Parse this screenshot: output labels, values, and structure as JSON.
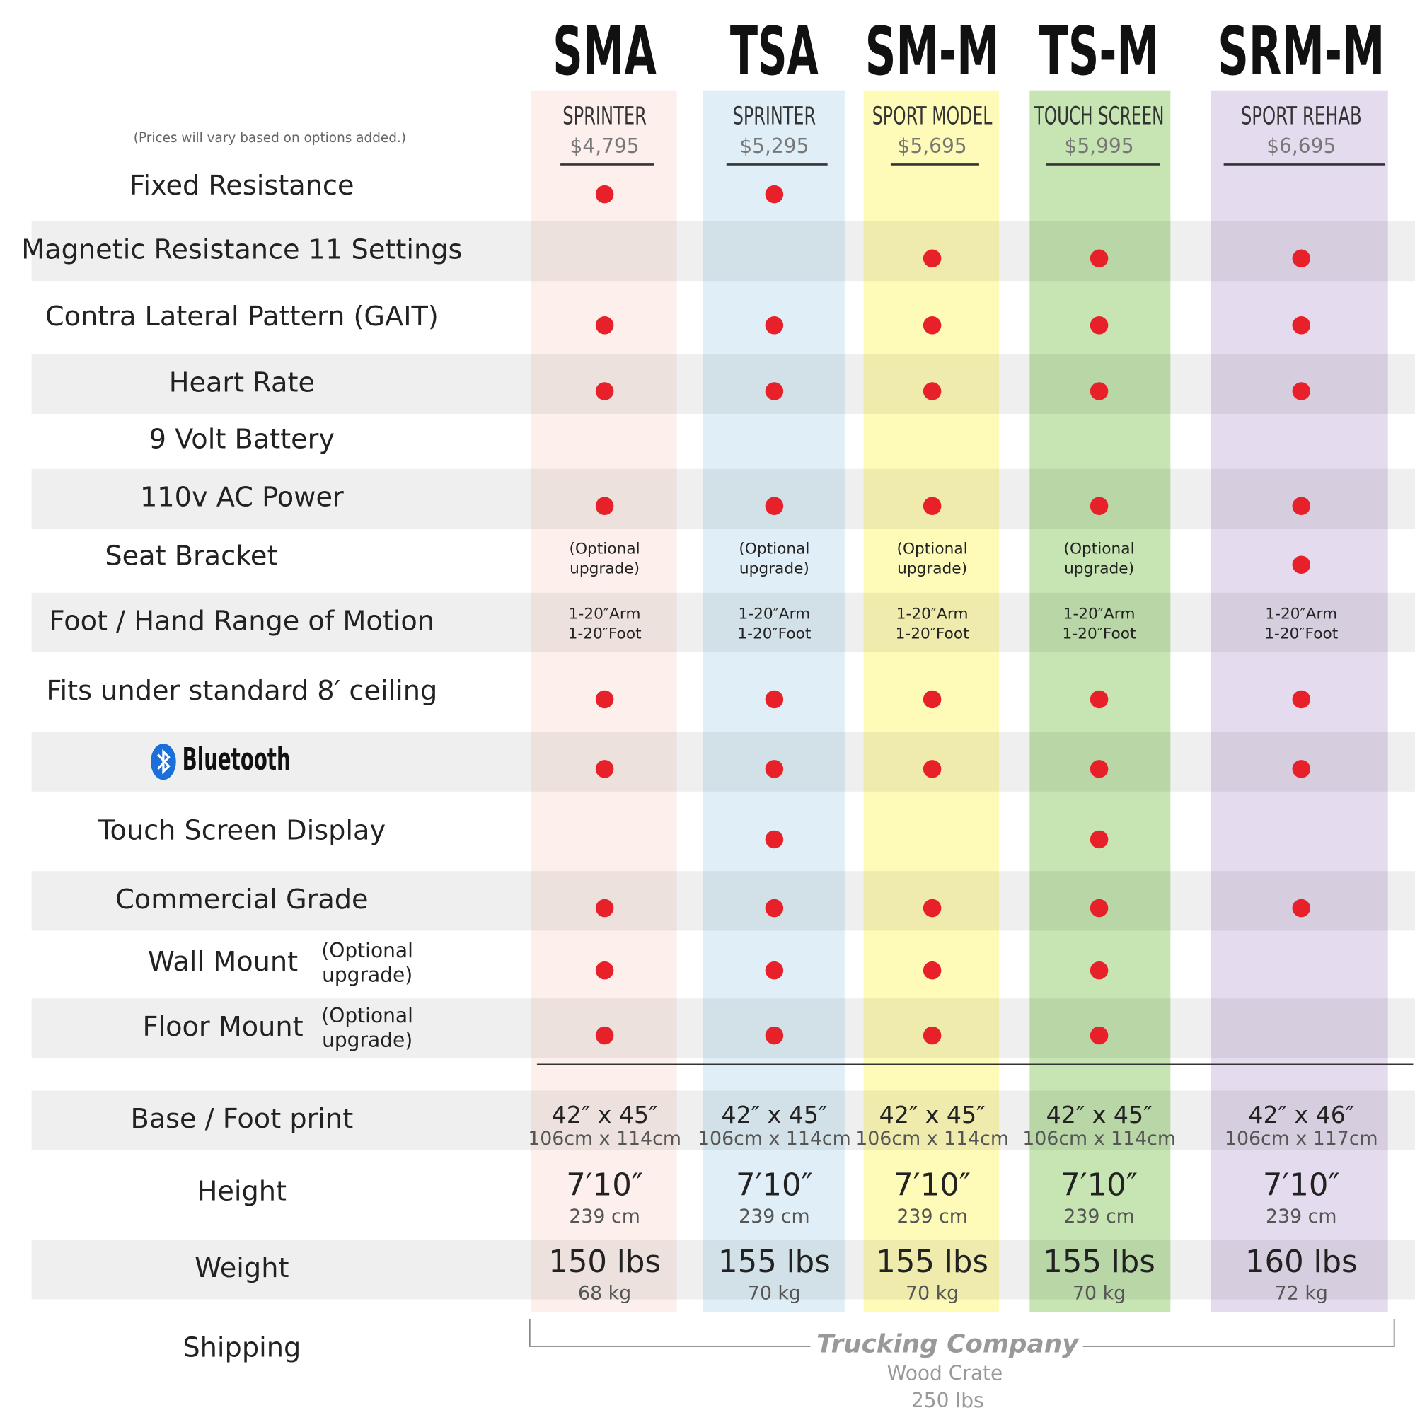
{
  "note": "(Prices will vary based on options added.)",
  "models": [
    {
      "code": "SMA",
      "name": "SPRINTER",
      "price": "$4,795",
      "color": "#fdf0ec"
    },
    {
      "code": "TSA",
      "name": "SPRINTER",
      "price": "$5,295",
      "color": "#e0eff7"
    },
    {
      "code": "SM-M",
      "name": "SPORT MODEL",
      "price": "$5,695",
      "color": "#fefbb8"
    },
    {
      "code": "TS-M",
      "name": "TOUCH SCREEN",
      "price": "$5,995",
      "color": "#c6e5b2"
    },
    {
      "code": "SRM-M",
      "name": "SPORT REHAB",
      "price": "$6,695",
      "color": "#e5dbee"
    }
  ],
  "features": [
    {
      "label": "Fixed Resistance",
      "cells": [
        true,
        true,
        null,
        null,
        null
      ]
    },
    {
      "label": "Magnetic Resistance  11 Settings",
      "cells": [
        null,
        null,
        true,
        true,
        true
      ]
    },
    {
      "label": "Contra Lateral Pattern (GAIT)",
      "cells": [
        true,
        true,
        true,
        true,
        true
      ]
    },
    {
      "label": "Heart Rate",
      "cells": [
        true,
        true,
        true,
        true,
        true
      ]
    },
    {
      "label": "9  Volt  Battery",
      "cells": [
        null,
        null,
        null,
        null,
        null
      ]
    },
    {
      "label": "110v AC Power",
      "cells": [
        true,
        true,
        true,
        true,
        true
      ]
    },
    {
      "label": "Seat Bracket",
      "cells": [
        [
          "(Optional",
          "upgrade)"
        ],
        [
          "(Optional",
          "upgrade)"
        ],
        [
          "(Optional",
          "upgrade)"
        ],
        [
          "(Optional",
          "upgrade)"
        ],
        true
      ]
    },
    {
      "label": "Foot / Hand Range of Motion",
      "cells": [
        [
          "1-20″Arm",
          "1-20″Foot"
        ],
        [
          "1-20″Arm",
          "1-20″Foot"
        ],
        [
          "1-20″Arm",
          "1-20″Foot"
        ],
        [
          "1-20″Arm",
          "1-20″Foot"
        ],
        [
          "1-20″Arm",
          "1-20″Foot"
        ]
      ]
    },
    {
      "label": "Fits under standard 8′ ceiling",
      "cells": [
        true,
        true,
        true,
        true,
        true
      ]
    },
    {
      "label": "Bluetooth",
      "cells": [
        true,
        true,
        true,
        true,
        true
      ]
    },
    {
      "label": "Touch Screen Display",
      "cells": [
        null,
        true,
        null,
        true,
        null
      ]
    },
    {
      "label": "Commercial Grade",
      "cells": [
        true,
        true,
        true,
        true,
        true
      ]
    },
    {
      "label": "Wall Mount",
      "note": [
        "(Optional",
        "upgrade)"
      ],
      "cells": [
        true,
        true,
        true,
        true,
        null
      ]
    },
    {
      "label": "Floor Mount",
      "note": [
        "(Optional",
        "upgrade)"
      ],
      "cells": [
        true,
        true,
        true,
        true,
        null
      ]
    }
  ],
  "specs": [
    {
      "label": "Base / Foot print",
      "cells": [
        [
          "42″ x 45″",
          "106cm x 114cm"
        ],
        [
          "42″ x 45″",
          "106cm x 114cm"
        ],
        [
          "42″ x 45″",
          "106cm x 114cm"
        ],
        [
          "42″ x 45″",
          "106cm x 114cm"
        ],
        [
          "42″ x 46″",
          "106cm x 117cm"
        ]
      ]
    },
    {
      "label": "Height",
      "cells": [
        [
          "7′10″",
          "239 cm"
        ],
        [
          "7′10″",
          "239 cm"
        ],
        [
          "7′10″",
          "239 cm"
        ],
        [
          "7′10″",
          "239 cm"
        ],
        [
          "7′10″",
          "239 cm"
        ]
      ]
    },
    {
      "label": "Weight",
      "cells": [
        [
          "150 lbs",
          "68 kg"
        ],
        [
          "155 lbs",
          "70 kg"
        ],
        [
          "155 lbs",
          "70 kg"
        ],
        [
          "155 lbs",
          "70 kg"
        ],
        [
          "160 lbs",
          "72 kg"
        ]
      ]
    }
  ],
  "shipping": {
    "label": "Shipping",
    "method": "Trucking Company",
    "packaging": "Wood Crate",
    "weight": "250 lbs"
  }
}
